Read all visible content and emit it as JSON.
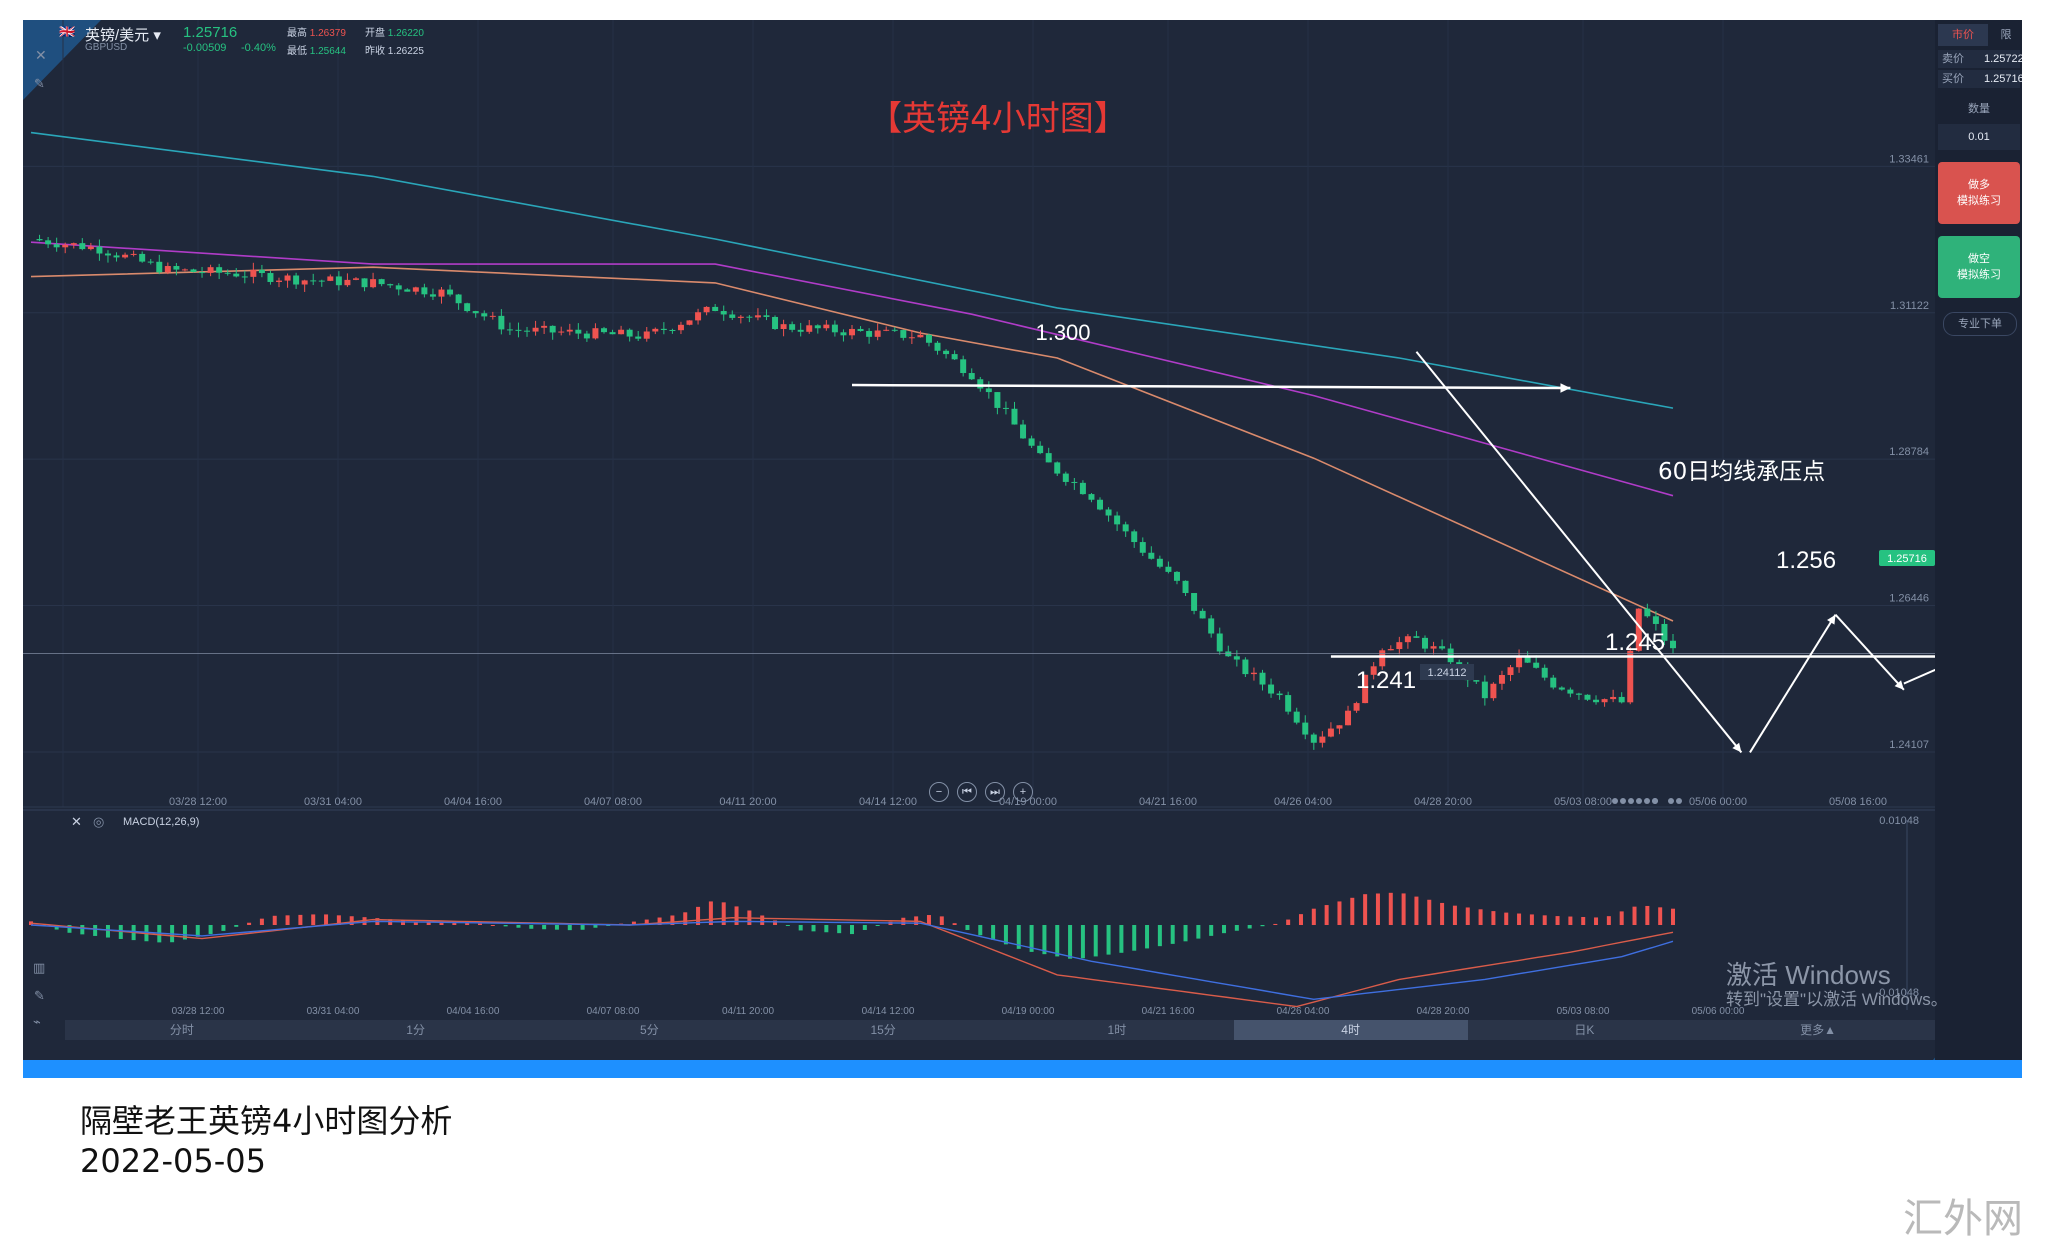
{
  "symbol": {
    "name": "英镑/美元",
    "code": "GBPUSD",
    "price": "1.25716",
    "change": "-0.00509",
    "change_pct": "-0.40%"
  },
  "stats": [
    {
      "label": "最高",
      "value": "1.26379"
    },
    {
      "label": "开盘",
      "value": "1.26220"
    },
    {
      "label": "最低",
      "value": "1.25644"
    },
    {
      "label": "昨收",
      "value": "1.26225"
    }
  ],
  "chart_title": "【英镑4小时图】",
  "annotations": {
    "level_1300": "1.300",
    "level_1256": "1.256",
    "level_1241": "1.241",
    "level_1245": "1.245",
    "resistance": "60日均线承压点",
    "low_tag": "1.24112"
  },
  "colors": {
    "background": "#1f283a",
    "up": "#ef5350",
    "down": "#26c281",
    "title": "#e53935",
    "ma60": "#d98a6c",
    "ma120": "#b03cc8",
    "ma250": "#2aa6b9"
  },
  "price_axis": [
    "1.33461",
    "1.31122",
    "1.28784",
    "1.26446",
    "1.24107"
  ],
  "current_price_tag": "1.25716",
  "time_axis": [
    "03/28 12:00",
    "03/31 04:00",
    "04/04 16:00",
    "04/07 08:00",
    "04/11 20:00",
    "04/14 12:00",
    "04/19 00:00",
    "04/21 16:00",
    "04/26 04:00",
    "04/28 20:00",
    "05/03 08:00",
    "05/06 00:00",
    "05/08 16:00"
  ],
  "macd": {
    "label": "MACD(12,26,9)",
    "axis_top": "0.01048",
    "axis_bottom": "-0.01048"
  },
  "macd_time_axis": [
    "03/28 12:00",
    "03/31 04:00",
    "04/04 16:00",
    "04/07 08:00",
    "04/11 20:00",
    "04/14 12:00",
    "04/19 00:00",
    "04/21 16:00",
    "04/26 04:00",
    "04/28 20:00",
    "05/03 08:00",
    "05/06 00:00"
  ],
  "timeframes": [
    {
      "label": "分时",
      "active": false
    },
    {
      "label": "1分",
      "active": false
    },
    {
      "label": "5分",
      "active": false
    },
    {
      "label": "15分",
      "active": false
    },
    {
      "label": "1时",
      "active": false
    },
    {
      "label": "4时",
      "active": true
    },
    {
      "label": "日K",
      "active": false
    },
    {
      "label": "更多▲",
      "active": false
    }
  ],
  "right_panel": {
    "tab_market": "市价",
    "tab_limit": "限",
    "sell_label": "卖价",
    "sell_value": "1.25722",
    "buy_label": "买价",
    "buy_value": "1.25716",
    "qty_label": "数量",
    "qty_value": "0.01",
    "long_btn": [
      "做多",
      "模拟练习"
    ],
    "short_btn": [
      "做空",
      "模拟练习"
    ],
    "pro_btn": "专业下单"
  },
  "windows_watermark": {
    "line1": "激活 Windows",
    "line2": "转到\"设置\"以激活 Windows。"
  },
  "caption": {
    "title": "隔壁老王英镑4小时图分析",
    "date": "2022-05-05"
  },
  "site_watermark": "汇外网",
  "chart_data": {
    "type": "candlestick",
    "title": "【英镑4小时图】",
    "symbol": "GBPUSD",
    "timeframe": "4时",
    "x_ticks": [
      "03/28 12:00",
      "03/31 04:00",
      "04/04 16:00",
      "04/07 08:00",
      "04/11 20:00",
      "04/14 12:00",
      "04/19 00:00",
      "04/21 16:00",
      "04/26 04:00",
      "04/28 20:00",
      "05/03 08:00",
      "05/06 00:00",
      "05/08 16:00"
    ],
    "y_ticks": [
      1.33461,
      1.31122,
      1.28784,
      1.26446,
      1.24107
    ],
    "ylim": [
      1.235,
      1.35
    ],
    "close_path": [
      [
        0,
        1.323
      ],
      [
        8,
        1.3215
      ],
      [
        16,
        1.318
      ],
      [
        24,
        1.3175
      ],
      [
        32,
        1.3165
      ],
      [
        40,
        1.316
      ],
      [
        48,
        1.3145
      ],
      [
        56,
        1.3085
      ],
      [
        64,
        1.308
      ],
      [
        72,
        1.3075
      ],
      [
        80,
        1.312
      ],
      [
        88,
        1.309
      ],
      [
        96,
        1.3082
      ],
      [
        104,
        1.3075
      ],
      [
        110,
        1.3015
      ],
      [
        114,
        1.295
      ],
      [
        118,
        1.288
      ],
      [
        124,
        1.282
      ],
      [
        128,
        1.276
      ],
      [
        134,
        1.268
      ],
      [
        140,
        1.256
      ],
      [
        146,
        1.25
      ],
      [
        150,
        1.243
      ],
      [
        154,
        1.247
      ],
      [
        158,
        1.258
      ],
      [
        162,
        1.259
      ],
      [
        166,
        1.256
      ],
      [
        170,
        1.25
      ],
      [
        174,
        1.256
      ],
      [
        178,
        1.252
      ],
      [
        182,
        1.25
      ],
      [
        186,
        1.249
      ],
      [
        188,
        1.264
      ],
      [
        190,
        1.261
      ],
      [
        192,
        1.2572
      ]
    ],
    "ma_series": [
      {
        "name": "MA60",
        "values": [
          [
            0,
            1.317
          ],
          [
            40,
            1.3185
          ],
          [
            80,
            1.316
          ],
          [
            104,
            1.308
          ],
          [
            120,
            1.304
          ],
          [
            150,
            1.288
          ],
          [
            192,
            1.262
          ]
        ]
      },
      {
        "name": "MA120",
        "values": [
          [
            0,
            1.3225
          ],
          [
            40,
            1.319
          ],
          [
            80,
            1.319
          ],
          [
            110,
            1.311
          ],
          [
            150,
            1.298
          ],
          [
            192,
            1.282
          ]
        ]
      },
      {
        "name": "MA250",
        "values": [
          [
            0,
            1.34
          ],
          [
            40,
            1.333
          ],
          [
            80,
            1.323
          ],
          [
            120,
            1.312
          ],
          [
            160,
            1.304
          ],
          [
            192,
            1.296
          ]
        ]
      }
    ],
    "levels": [
      {
        "label": "1.300",
        "value": 1.3
      },
      {
        "label": "1.256",
        "value": 1.256
      }
    ],
    "marked_lows": [
      {
        "label": "1.241",
        "value": 1.2411
      },
      {
        "label": "1.245",
        "value": 1.245
      }
    ],
    "marked_low_tag": "1.24112",
    "resistance_zone": {
      "label": "60日均线承压点",
      "x_range": [
        186,
        193
      ],
      "y_range": [
        1.263,
        1.268
      ]
    },
    "macd": {
      "name": "MACD(12,26,9)",
      "ylim": [
        -0.01048,
        0.01048
      ],
      "histogram": [
        [
          0,
          0.0004
        ],
        [
          4,
          -0.0008
        ],
        [
          10,
          -0.0015
        ],
        [
          16,
          -0.002
        ],
        [
          22,
          -0.0008
        ],
        [
          28,
          0.001
        ],
        [
          34,
          0.0012
        ],
        [
          40,
          0.0008
        ],
        [
          46,
          0.0003
        ],
        [
          52,
          0.0002
        ],
        [
          58,
          -0.0004
        ],
        [
          64,
          -0.0006
        ],
        [
          70,
          0.0003
        ],
        [
          76,
          0.0012
        ],
        [
          80,
          0.0028
        ],
        [
          84,
          0.0016
        ],
        [
          90,
          -0.0006
        ],
        [
          96,
          -0.001
        ],
        [
          102,
          0.0008
        ],
        [
          106,
          0.0012
        ],
        [
          110,
          -0.0008
        ],
        [
          116,
          -0.0028
        ],
        [
          122,
          -0.0038
        ],
        [
          128,
          -0.003
        ],
        [
          134,
          -0.002
        ],
        [
          140,
          -0.0008
        ],
        [
          146,
          0.0002
        ],
        [
          150,
          0.0018
        ],
        [
          156,
          0.0034
        ],
        [
          160,
          0.0036
        ],
        [
          166,
          0.0022
        ],
        [
          172,
          0.0014
        ],
        [
          178,
          0.001
        ],
        [
          184,
          0.0008
        ],
        [
          188,
          0.0022
        ],
        [
          192,
          0.0018
        ]
      ],
      "dif": [
        [
          0,
          0.0002
        ],
        [
          20,
          -0.0015
        ],
        [
          40,
          0.0006
        ],
        [
          70,
          0.0
        ],
        [
          82,
          0.0008
        ],
        [
          104,
          0.0004
        ],
        [
          120,
          -0.0055
        ],
        [
          148,
          -0.009
        ],
        [
          160,
          -0.006
        ],
        [
          180,
          -0.003
        ],
        [
          192,
          -0.0008
        ]
      ],
      "dea": [
        [
          0,
          0.0
        ],
        [
          20,
          -0.0012
        ],
        [
          40,
          0.0004
        ],
        [
          70,
          0.0
        ],
        [
          82,
          0.0004
        ],
        [
          104,
          0.0002
        ],
        [
          124,
          -0.004
        ],
        [
          150,
          -0.0082
        ],
        [
          170,
          -0.006
        ],
        [
          186,
          -0.0035
        ],
        [
          192,
          -0.0018
        ]
      ]
    }
  }
}
